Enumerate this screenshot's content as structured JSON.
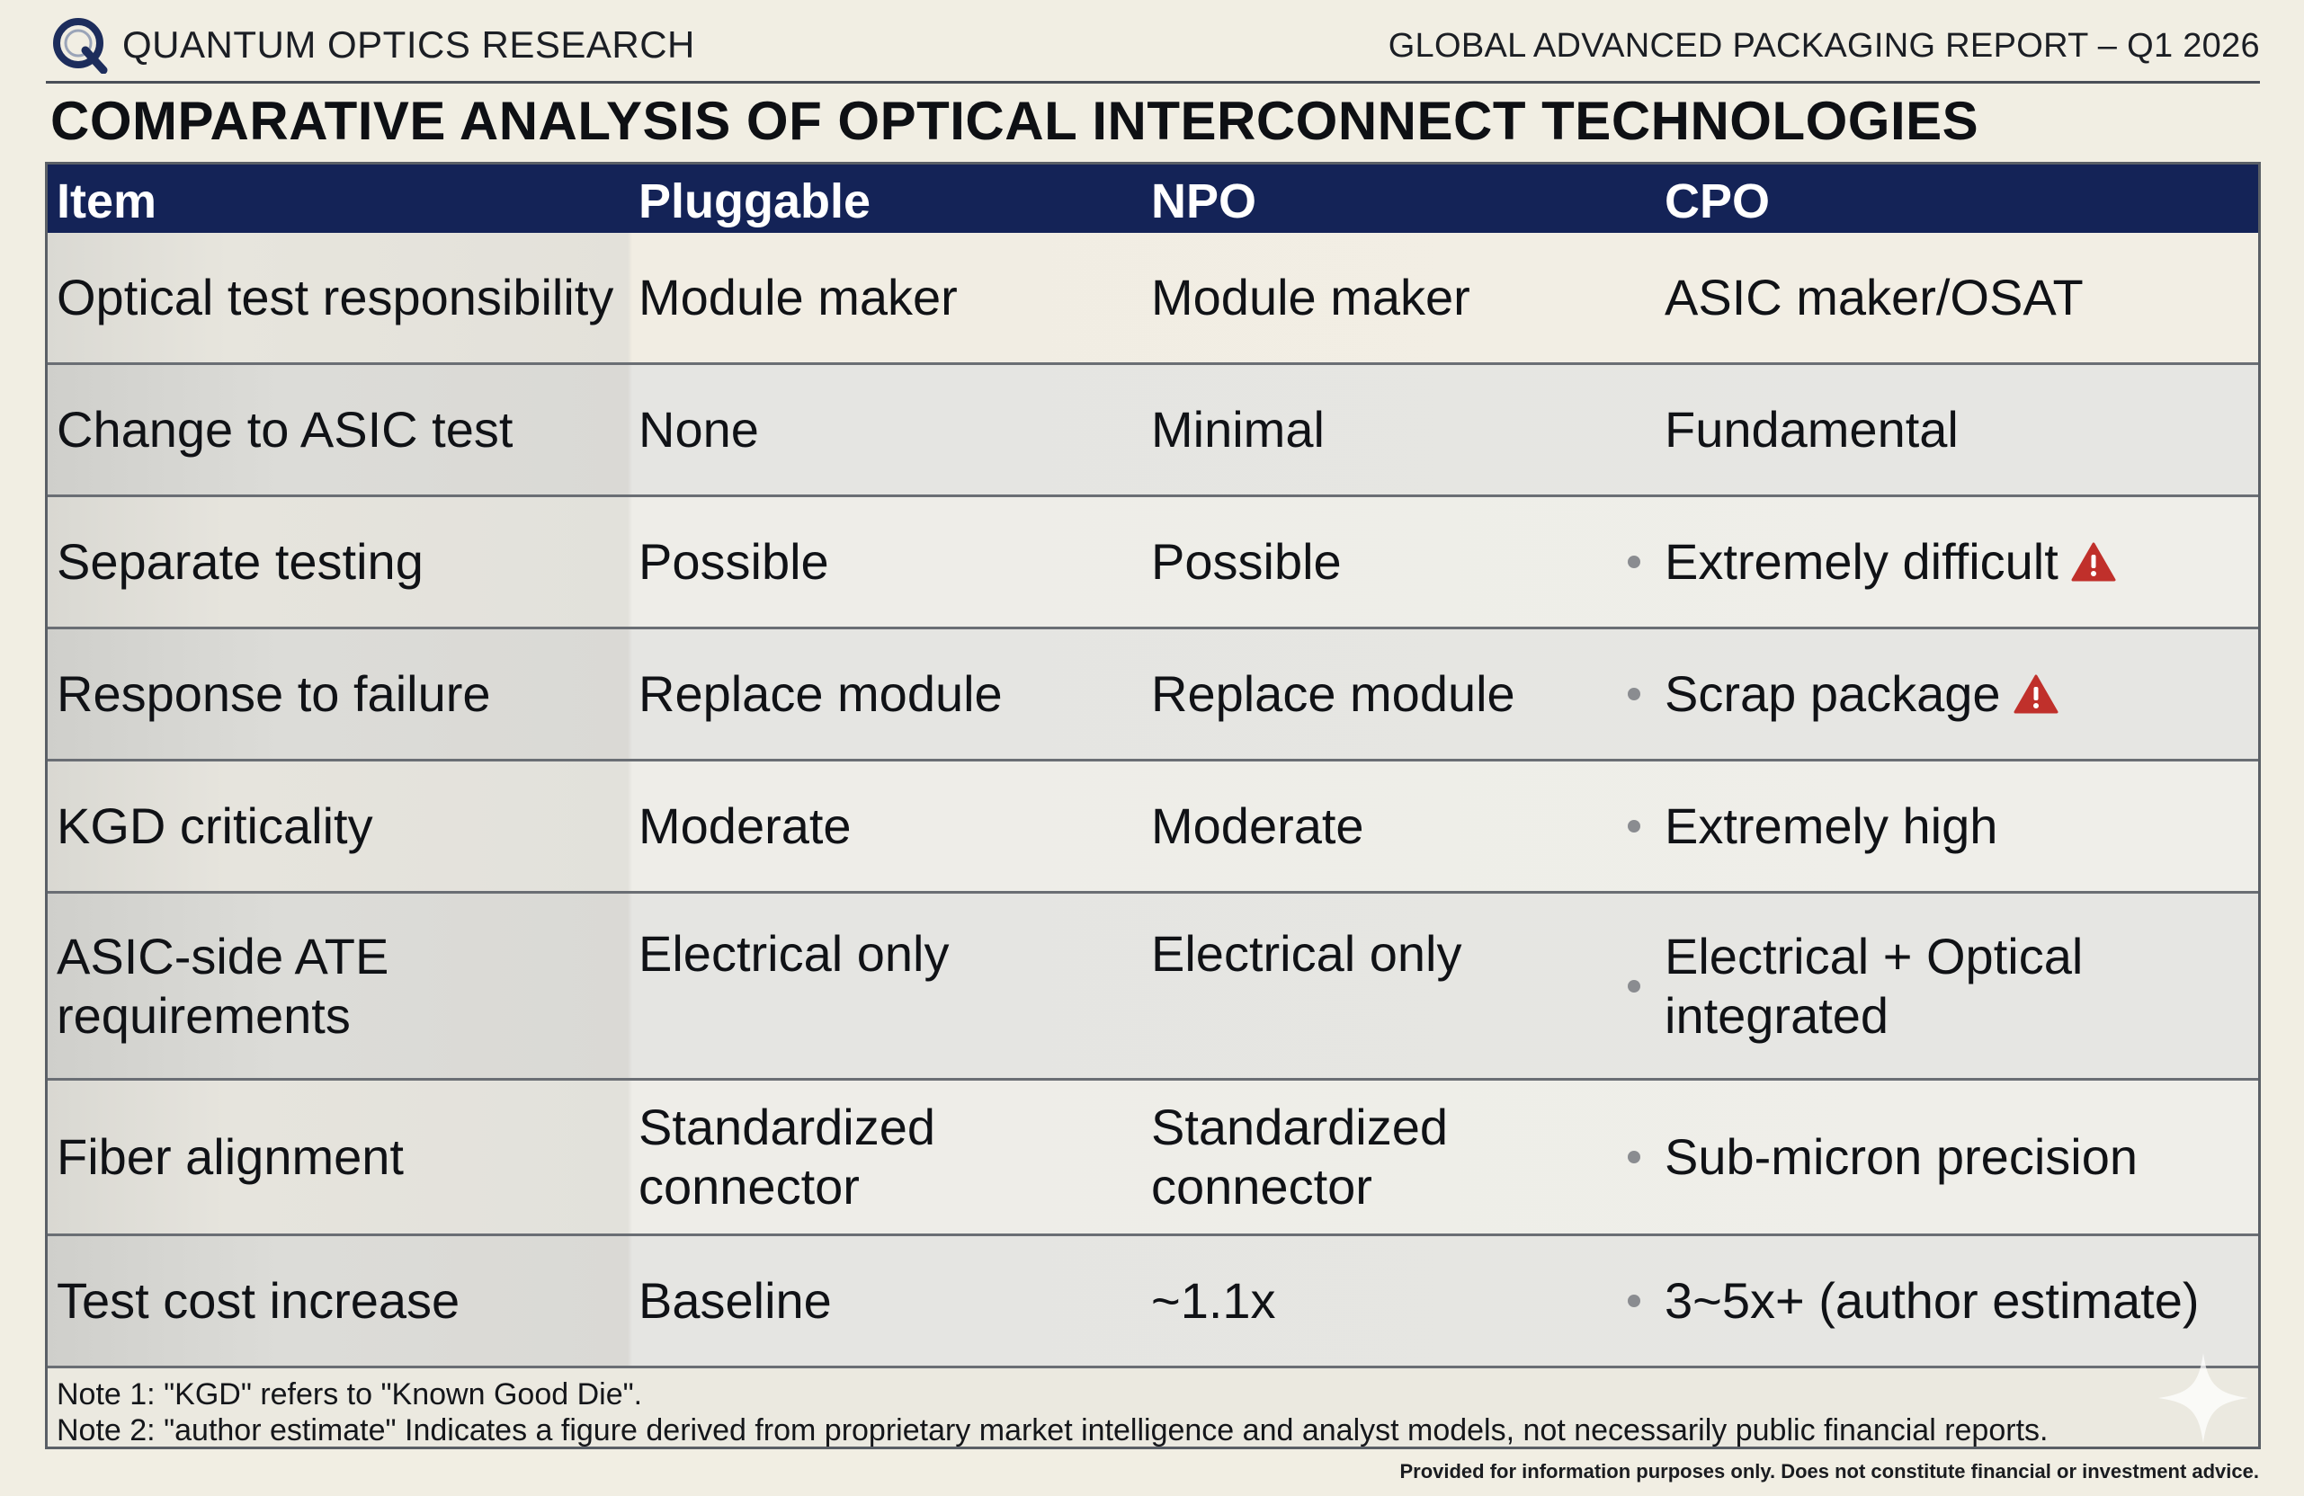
{
  "header": {
    "brand": "QUANTUM OPTICS RESEARCH",
    "report": "GLOBAL ADVANCED PACKAGING REPORT – Q1 2026"
  },
  "title": "COMPARATIVE ANALYSIS OF OPTICAL INTERCONNECT TECHNOLOGIES",
  "table": {
    "columns": [
      "Item",
      "Pluggable",
      "NPO",
      "CPO"
    ],
    "rows": [
      {
        "item": "Optical test responsibility",
        "pluggable": "Module maker",
        "npo": "Module maker",
        "cpo": "ASIC maker/OSAT",
        "bullet": false,
        "warning": false
      },
      {
        "item": "Change to ASIC test",
        "pluggable": "None",
        "npo": "Minimal",
        "cpo": "Fundamental",
        "bullet": false,
        "warning": false
      },
      {
        "item": "Separate testing",
        "pluggable": "Possible",
        "npo": "Possible",
        "cpo": "Extremely difficult",
        "bullet": true,
        "warning": true
      },
      {
        "item": "Response to failure",
        "pluggable": "Replace module",
        "npo": "Replace module",
        "cpo": "Scrap package",
        "bullet": true,
        "warning": true
      },
      {
        "item": "KGD criticality",
        "pluggable": "Moderate",
        "npo": "Moderate",
        "cpo": "Extremely high",
        "bullet": true,
        "warning": false
      },
      {
        "item": "ASIC-side ATE requirements",
        "pluggable": "Electrical only",
        "npo": "Electrical only",
        "cpo": "Electrical + Optical integrated",
        "bullet": true,
        "warning": false
      },
      {
        "item": "Fiber alignment",
        "pluggable": "Standardized connector",
        "npo": "Standardized connector",
        "cpo": "Sub-micron precision",
        "bullet": true,
        "warning": false
      },
      {
        "item": "Test cost increase",
        "pluggable": "Baseline",
        "npo": "~1.1x",
        "cpo": "3~5x+ (author estimate)",
        "bullet": true,
        "warning": false
      }
    ]
  },
  "notes": [
    "Note 1: \"KGD\" refers to \"Known Good Die\".",
    "Note 2: \"author estimate\" Indicates a figure derived from proprietary market intelligence and analyst models, not necessarily public financial reports."
  ],
  "footer": "Provided for information purposes only. Does not constitute financial or investment advice.",
  "icons": {
    "logo": "q-logo-icon",
    "warning": "warning-triangle-icon",
    "sparkle": "sparkle-icon"
  },
  "colors": {
    "header_bar": "#142357",
    "warning": "#c0302b",
    "background": "#f1eee3"
  }
}
